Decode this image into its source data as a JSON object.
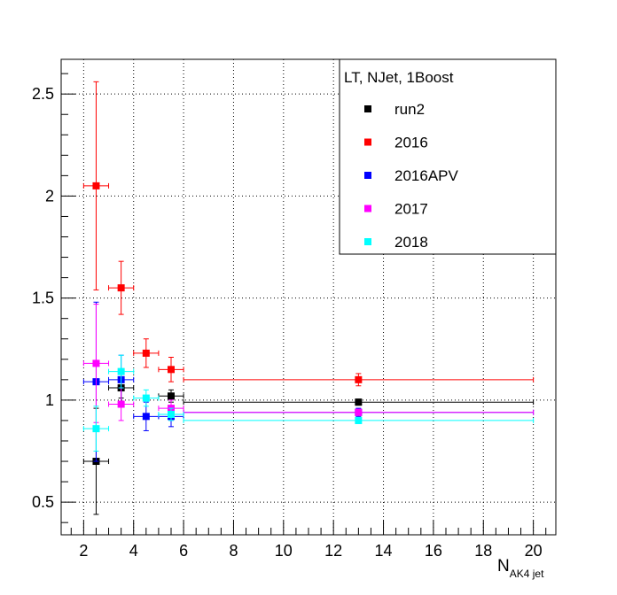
{
  "chart_data": {
    "type": "scatter",
    "title": "",
    "xlabel_main": "N",
    "xlabel_sub": "AK4 jet",
    "ylabel": "",
    "xlim": [
      1.1,
      20.9
    ],
    "ylim": [
      0.34,
      2.67
    ],
    "x_ticks": [
      2,
      4,
      6,
      8,
      10,
      12,
      14,
      16,
      18,
      20
    ],
    "y_ticks": [
      0.5,
      1,
      1.5,
      2,
      2.5
    ],
    "grid": true,
    "legend": {
      "header": "LT, NJet, 1Boost",
      "placement": "top-right"
    },
    "series": [
      {
        "name": "run2",
        "color": "#000000",
        "points": [
          {
            "x": 2.5,
            "y": 0.7,
            "xerr": 0.5,
            "yerr": 0.26
          },
          {
            "x": 3.5,
            "y": 1.06,
            "xerr": 0.5,
            "yerr": 0.05
          },
          {
            "x": 5.5,
            "y": 1.02,
            "xerr": 0.5,
            "yerr": 0.03
          },
          {
            "x": 13.0,
            "y": 0.99,
            "xerr": 7.0,
            "yerr": 0.015
          }
        ]
      },
      {
        "name": "2016",
        "color": "#ff0000",
        "points": [
          {
            "x": 2.5,
            "y": 2.05,
            "xerr": 0.5,
            "yerr": 0.51
          },
          {
            "x": 3.5,
            "y": 1.55,
            "xerr": 0.5,
            "yerr": 0.13
          },
          {
            "x": 4.5,
            "y": 1.23,
            "xerr": 0.5,
            "yerr": 0.07
          },
          {
            "x": 5.5,
            "y": 1.15,
            "xerr": 0.5,
            "yerr": 0.06
          },
          {
            "x": 13.0,
            "y": 1.1,
            "xerr": 7.0,
            "yerr": 0.03
          }
        ]
      },
      {
        "name": "2016APV",
        "color": "#0000ff",
        "points": [
          {
            "x": 2.5,
            "y": 1.09,
            "xerr": 0.5,
            "yerr": 0.39
          },
          {
            "x": 3.5,
            "y": 1.1,
            "xerr": 0.5,
            "yerr": 0.12
          },
          {
            "x": 4.5,
            "y": 0.92,
            "xerr": 0.5,
            "yerr": 0.07
          },
          {
            "x": 5.5,
            "y": 0.92,
            "xerr": 0.5,
            "yerr": 0.05
          },
          {
            "x": 13.0,
            "y": 0.94,
            "xerr": 7.0,
            "yerr": 0.02
          }
        ]
      },
      {
        "name": "2017",
        "color": "#ff00ff",
        "points": [
          {
            "x": 2.5,
            "y": 1.18,
            "xerr": 0.5,
            "yerr": 0.29
          },
          {
            "x": 3.5,
            "y": 0.98,
            "xerr": 0.5,
            "yerr": 0.08
          },
          {
            "x": 5.5,
            "y": 0.96,
            "xerr": 0.5,
            "yerr": 0.04
          },
          {
            "x": 13.0,
            "y": 0.94,
            "xerr": 7.0,
            "yerr": 0.015
          }
        ]
      },
      {
        "name": "2018",
        "color": "#00ffff",
        "points": [
          {
            "x": 2.5,
            "y": 0.86,
            "xerr": 0.5,
            "yerr": 0.11
          },
          {
            "x": 3.5,
            "y": 1.14,
            "xerr": 0.5,
            "yerr": 0.08
          },
          {
            "x": 4.5,
            "y": 1.01,
            "xerr": 0.5,
            "yerr": 0.04
          },
          {
            "x": 5.5,
            "y": 0.93,
            "xerr": 0.5,
            "yerr": 0.03
          },
          {
            "x": 13.0,
            "y": 0.9,
            "xerr": 7.0,
            "yerr": 0.015
          }
        ]
      }
    ]
  }
}
